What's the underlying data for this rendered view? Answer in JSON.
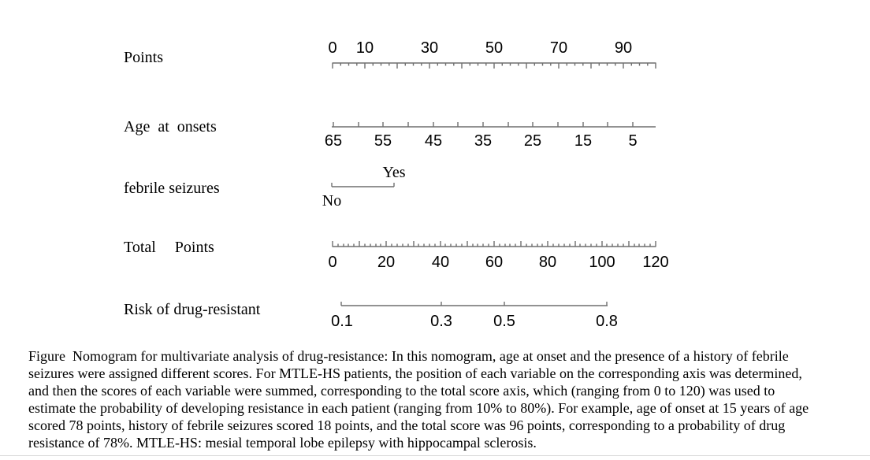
{
  "figure": {
    "row_labels": {
      "points": "Points",
      "age": "Age at onsets",
      "febrile": "febrile seizures",
      "total": "Total  Points",
      "risk": "Risk of drug-resistant"
    },
    "axes": {
      "points": {
        "tick_labels": [
          "0",
          "10",
          "30",
          "50",
          "70",
          "90"
        ]
      },
      "age": {
        "tick_labels": [
          "65",
          "55",
          "45",
          "35",
          "25",
          "15",
          "5"
        ]
      },
      "febrile": {
        "yes_label": "Yes",
        "no_label": "No"
      },
      "total": {
        "tick_labels": [
          "0",
          "20",
          "40",
          "60",
          "80",
          "100",
          "120"
        ]
      },
      "risk": {
        "tick_labels": [
          "0.1",
          "0.3",
          "0.5",
          "0.8"
        ]
      }
    },
    "caption_lines": [
      "Figure  Nomogram for multivariate analysis of drug-resistance: In this nomogram, age at onset and the presence of a history of febrile",
      "seizures were assigned different scores. For MTLE-HS patients, the position of each variable on the corresponding axis was determined,",
      "and then the scores of each variable were summed, corresponding to the total score axis, which (ranging from 0 to 120) was used to",
      "estimate the probability of developing resistance in each patient (ranging from 10% to 80%). For example, age of onset at 15 years of age",
      "scored 78 points, history of febrile seizures scored 18 points, and the total score was 96 points, corresponding to a probability of drug",
      "resistance of 78%. MTLE-HS: mesial temporal lobe epilepsy with hippocampal sclerosis."
    ],
    "colors": {
      "axis_line": "#6f6f6f",
      "text": "#000000",
      "bottom_rule": "#d9d9d9"
    }
  },
  "chart_data": {
    "type": "nomogram",
    "title": "Nomogram for multivariate analysis of drug-resistance",
    "axes": [
      {
        "name": "Points",
        "scale": "linear",
        "range": [
          0,
          100
        ],
        "labeled_ticks": [
          0,
          10,
          30,
          50,
          70,
          90
        ],
        "major_tick_interval": 10,
        "minor_tick_interval": 2.5,
        "labels_position": "above",
        "ticks_position": "below"
      },
      {
        "name": "Age at onsets",
        "scale": "linear-reversed",
        "range": [
          65,
          0
        ],
        "labeled_ticks": [
          65,
          55,
          45,
          35,
          25,
          15,
          5
        ],
        "tick_interval": 5,
        "labels_position": "below",
        "ticks_position": "above"
      },
      {
        "name": "febrile seizures",
        "scale": "categorical",
        "categories": [
          "No",
          "Yes"
        ],
        "category_points": {
          "No": 0,
          "Yes": 18
        },
        "labels_position": {
          "No": "below left end",
          "Yes": "above right end"
        }
      },
      {
        "name": "Total Points",
        "scale": "linear",
        "range": [
          0,
          120
        ],
        "labeled_ticks": [
          0,
          20,
          40,
          60,
          80,
          100,
          120
        ],
        "major_tick_interval": 10,
        "minor_tick_interval": 2,
        "labels_position": "below",
        "ticks_position": "above"
      },
      {
        "name": "Risk of drug-resistant",
        "scale": "logit",
        "range": [
          0.1,
          0.8
        ],
        "labeled_ticks": [
          0.1,
          0.3,
          0.5,
          0.8
        ],
        "labels_position": "below",
        "ticks_position": "above"
      }
    ],
    "worked_example": {
      "age_at_onset_years": 15,
      "age_points": 78,
      "febrile_seizures_points": 18,
      "total_points": 96,
      "risk_probability": "78%"
    }
  }
}
